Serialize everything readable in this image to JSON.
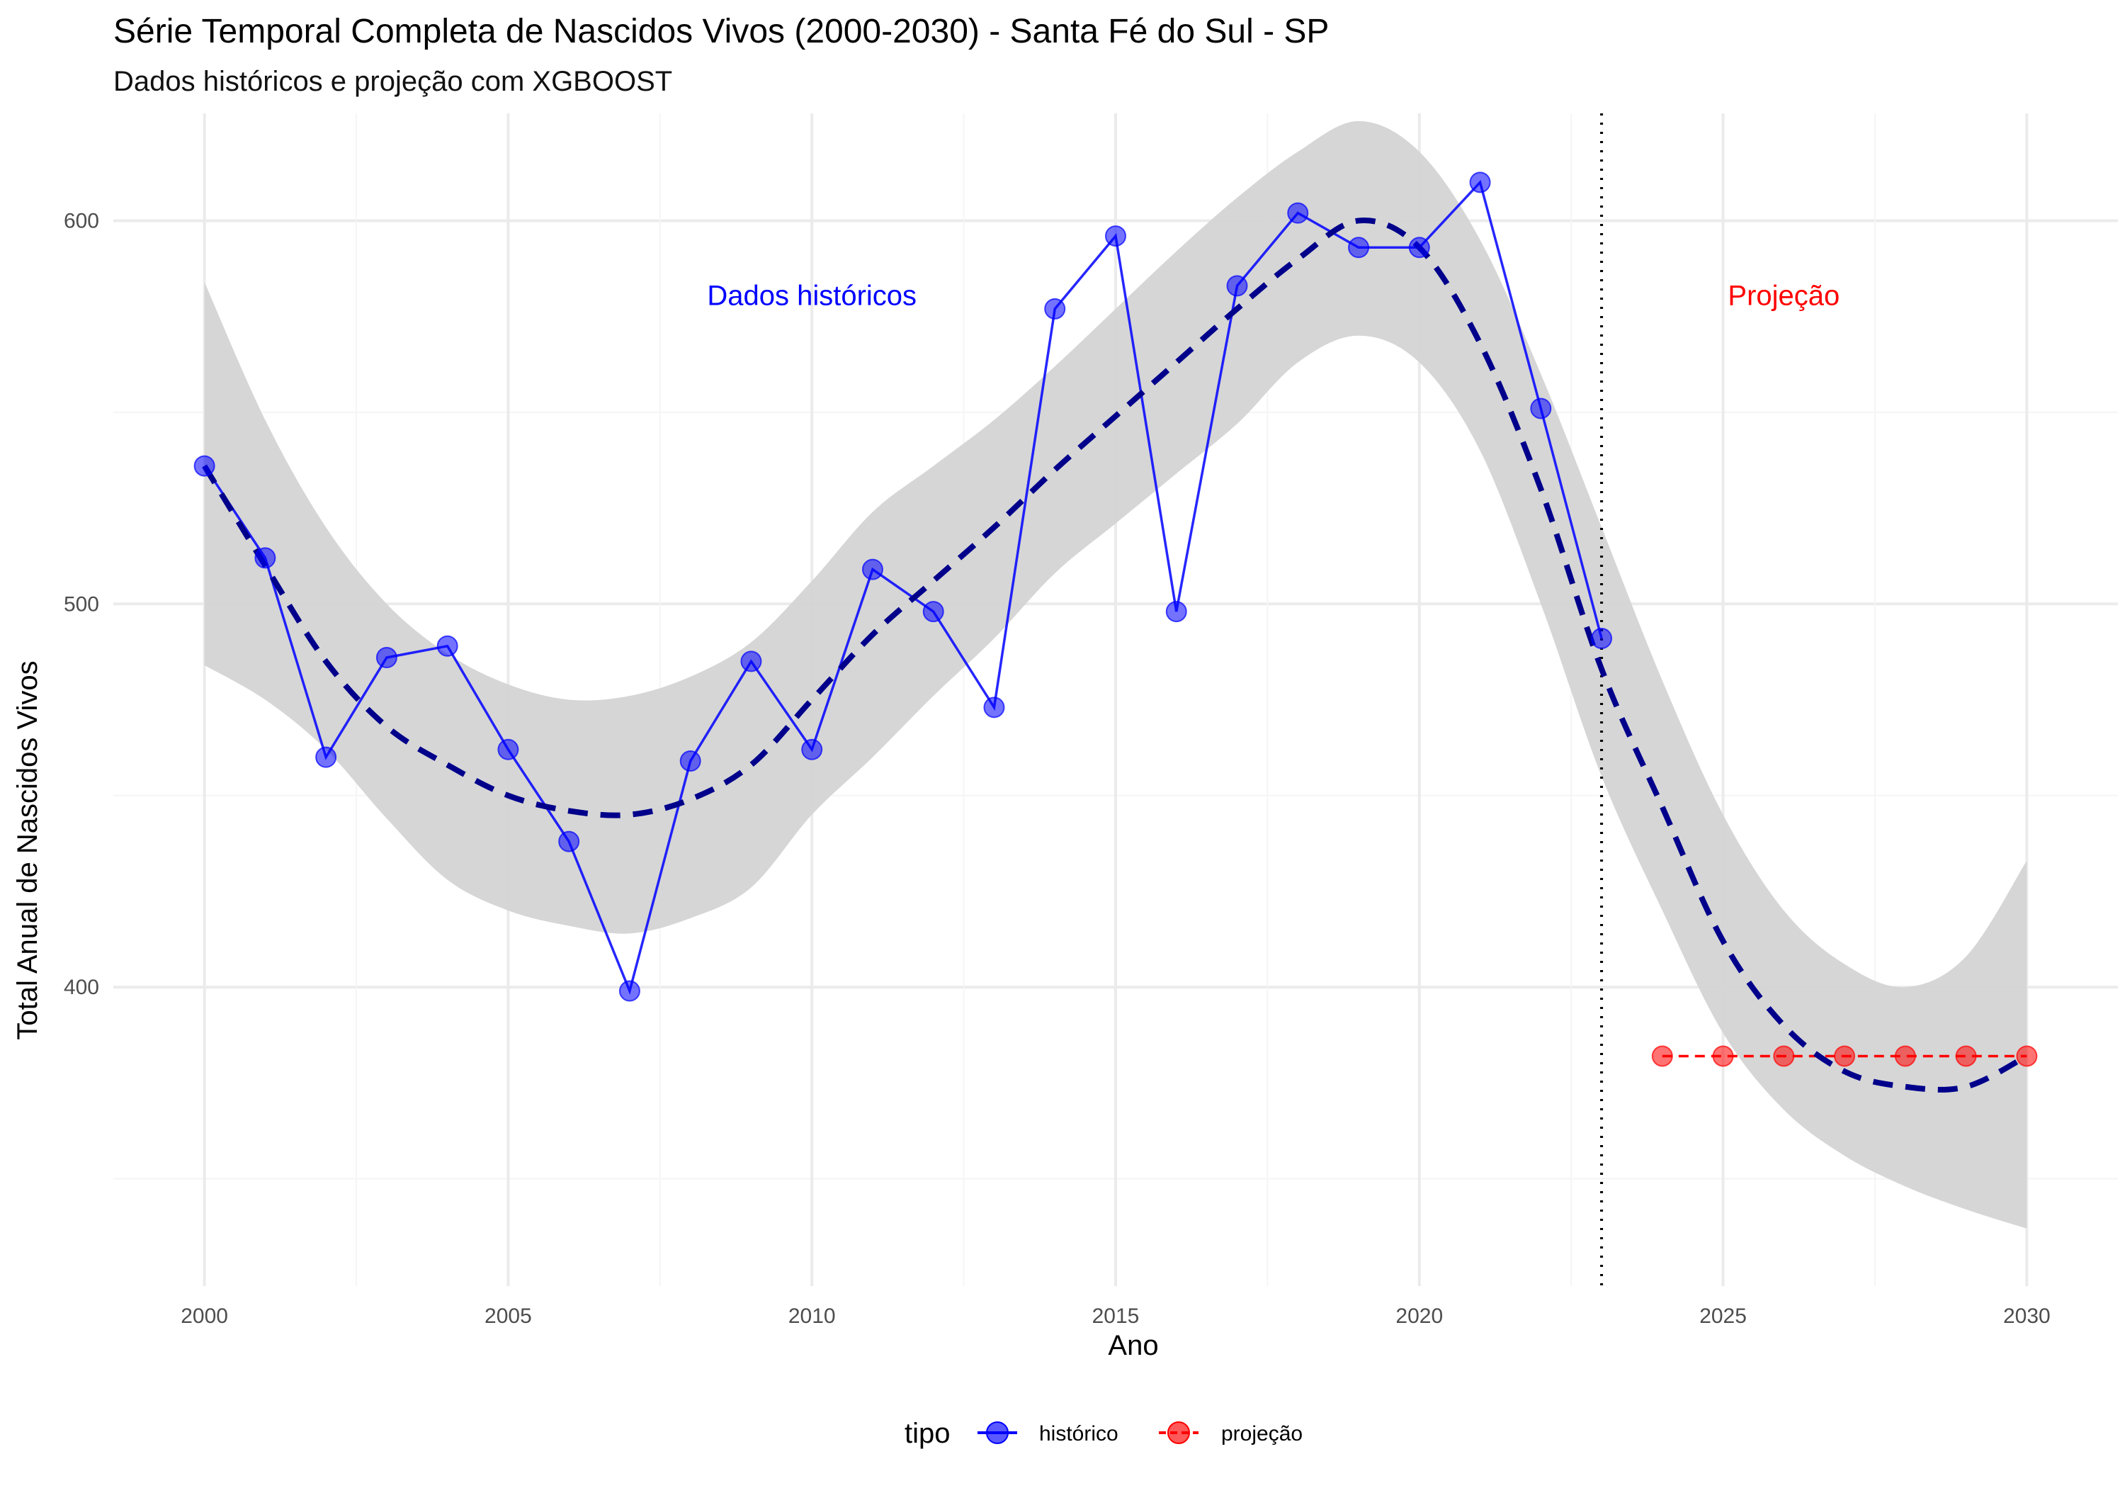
{
  "colors": {
    "historico": "#0000FF",
    "projecao": "#FF0000",
    "trend": "#00008B",
    "band": "#D4D4D4",
    "grid_major": "#EBEBEB",
    "grid_minor": "#F5F5F5"
  },
  "chart_data": {
    "type": "line",
    "title": "Série Temporal Completa de Nascidos Vivos (2000-2030) -  Santa Fé do Sul - SP",
    "subtitle": "Dados históricos e projeção com XGBOOST",
    "xlabel": "Ano",
    "ylabel": "Total Anual de Nascidos Vivos",
    "xlim": [
      1998.5,
      2031.5
    ],
    "ylim": [
      322,
      628
    ],
    "x_ticks": [
      "2000",
      "2005",
      "2010",
      "2015",
      "2020",
      "2025",
      "2030"
    ],
    "y_ticks": [
      "400",
      "500",
      "600"
    ],
    "grid": true,
    "legend": {
      "position": "bottom",
      "title": "tipo",
      "entries": [
        "histórico",
        "projeção"
      ]
    },
    "series": [
      {
        "name": "histórico",
        "color": "#0000FF",
        "style": "solid",
        "x": [
          2000,
          2001,
          2002,
          2003,
          2004,
          2005,
          2006,
          2007,
          2008,
          2009,
          2010,
          2011,
          2012,
          2013,
          2014,
          2015,
          2016,
          2017,
          2018,
          2019,
          2020,
          2021,
          2022,
          2023
        ],
        "values": [
          536,
          512,
          460,
          486,
          489,
          462,
          438,
          399,
          459,
          485,
          462,
          509,
          498,
          473,
          577,
          596,
          498,
          583,
          602,
          593,
          593,
          610,
          551,
          491
        ]
      },
      {
        "name": "projeção",
        "color": "#FF0000",
        "style": "dashed",
        "x": [
          2024,
          2025,
          2026,
          2027,
          2028,
          2029,
          2030
        ],
        "values": [
          382,
          382,
          382,
          382,
          382,
          382,
          382
        ]
      }
    ],
    "trend": {
      "style": "dashed",
      "color": "#00008B",
      "x": [
        2000,
        2001,
        2002,
        2003,
        2004,
        2005,
        2006,
        2007,
        2008,
        2009,
        2010,
        2011,
        2012,
        2013,
        2014,
        2015,
        2016,
        2017,
        2018,
        2019,
        2020,
        2021,
        2022,
        2023,
        2024,
        2025,
        2026,
        2027,
        2028,
        2029,
        2030
      ],
      "values": [
        536,
        510,
        485,
        468,
        458,
        450,
        446,
        445,
        449,
        458,
        475,
        492,
        506,
        520,
        535,
        549,
        563,
        577,
        590,
        600,
        593,
        568,
        530,
        483,
        447,
        412,
        390,
        378,
        374,
        374,
        382
      ],
      "band_upper": [
        584,
        548,
        520,
        500,
        487,
        479,
        475,
        476,
        481,
        490,
        506,
        524,
        536,
        548,
        562,
        577,
        592,
        606,
        618,
        626,
        618,
        595,
        560,
        520,
        480,
        445,
        420,
        406,
        400,
        408,
        433
      ],
      "band_lower": [
        484,
        475,
        462,
        444,
        428,
        420,
        416,
        414,
        418,
        426,
        445,
        460,
        476,
        491,
        508,
        521,
        534,
        547,
        563,
        570,
        563,
        540,
        500,
        455,
        420,
        388,
        368,
        356,
        348,
        342,
        337
      ]
    },
    "cutoff_x": 2023,
    "annotations": [
      {
        "text": "Dados históricos",
        "x": 2010,
        "y": 578,
        "color": "#0000FF"
      },
      {
        "text": "Projeção",
        "x": 2026,
        "y": 578,
        "color": "#FF0000"
      }
    ]
  }
}
